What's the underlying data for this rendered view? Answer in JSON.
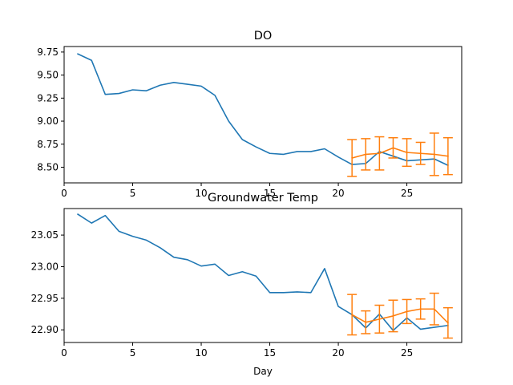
{
  "chart_data": [
    {
      "type": "line",
      "title": "DO",
      "xlabel": "",
      "ylabel": "",
      "xlim": [
        0,
        29
      ],
      "ylim": [
        8.33,
        9.81
      ],
      "xticks": [
        0,
        5,
        10,
        15,
        20,
        25
      ],
      "yticks": [
        8.5,
        8.75,
        9.0,
        9.25,
        9.5,
        9.75
      ],
      "ytick_labels": [
        "8.50",
        "8.75",
        "9.00",
        "9.25",
        "9.50",
        "9.75"
      ],
      "grid": false,
      "series": [
        {
          "color": "#1f77b4",
          "x": [
            1,
            2,
            3,
            4,
            5,
            6,
            7,
            8,
            9,
            10,
            11,
            12,
            13,
            14,
            15,
            16,
            17,
            18,
            19,
            20,
            21,
            22,
            23,
            24,
            25,
            26,
            27,
            28
          ],
          "y": [
            9.73,
            9.66,
            9.29,
            9.3,
            9.34,
            9.33,
            9.39,
            9.42,
            9.4,
            9.38,
            9.28,
            9.0,
            8.8,
            8.72,
            8.65,
            8.64,
            8.67,
            8.67,
            8.7,
            8.61,
            8.53,
            8.54,
            8.67,
            8.62,
            8.57,
            8.58,
            8.59,
            8.52
          ]
        },
        {
          "color": "#ff7f0e",
          "x": [
            21,
            22,
            23,
            24,
            25,
            26,
            27,
            28
          ],
          "y": [
            8.6,
            8.64,
            8.65,
            8.71,
            8.66,
            8.65,
            8.64,
            8.62
          ],
          "yerr": [
            0.2,
            0.17,
            0.18,
            0.11,
            0.15,
            0.12,
            0.23,
            0.2
          ]
        }
      ]
    },
    {
      "type": "line",
      "title": "Groundwater Temp",
      "xlabel": "Day",
      "ylabel": "",
      "xlim": [
        0,
        29
      ],
      "ylim": [
        22.88,
        23.092
      ],
      "xticks": [
        0,
        5,
        10,
        15,
        20,
        25
      ],
      "yticks": [
        22.9,
        22.95,
        23.0,
        23.05
      ],
      "ytick_labels": [
        "22.90",
        "22.95",
        "23.00",
        "23.05"
      ],
      "grid": false,
      "series": [
        {
          "color": "#1f77b4",
          "x": [
            1,
            2,
            3,
            4,
            5,
            6,
            7,
            8,
            9,
            10,
            11,
            12,
            13,
            14,
            15,
            16,
            17,
            18,
            19,
            20,
            21,
            22,
            23,
            24,
            25,
            26,
            27,
            28
          ],
          "y": [
            23.083,
            23.069,
            23.081,
            23.056,
            23.048,
            23.042,
            23.03,
            23.015,
            23.011,
            23.001,
            23.004,
            22.986,
            22.992,
            22.985,
            22.959,
            22.959,
            22.96,
            22.959,
            22.997,
            22.937,
            22.924,
            22.903,
            22.925,
            22.899,
            22.919,
            22.901,
            22.904,
            22.907
          ]
        },
        {
          "color": "#ff7f0e",
          "x": [
            21,
            22,
            23,
            24,
            25,
            26,
            27,
            28
          ],
          "y": [
            22.924,
            22.912,
            22.917,
            22.922,
            22.929,
            22.933,
            22.933,
            22.911
          ],
          "yerr": [
            0.032,
            0.018,
            0.022,
            0.025,
            0.019,
            0.016,
            0.025,
            0.024
          ]
        }
      ]
    }
  ]
}
